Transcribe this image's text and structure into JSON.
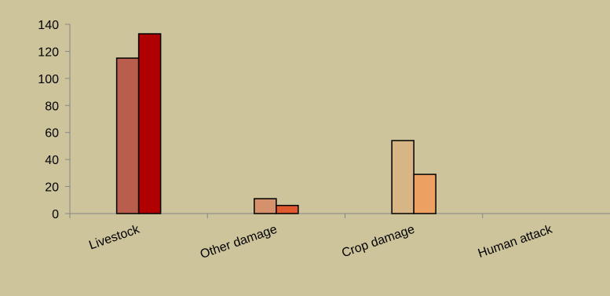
{
  "background_color": "#cdc49c",
  "chart_data": {
    "type": "bar",
    "title": "",
    "xlabel": "",
    "ylabel": "",
    "ylim": [
      0,
      140
    ],
    "yticks": [
      0,
      20,
      40,
      60,
      80,
      100,
      120,
      140
    ],
    "grid": false,
    "legend": "none",
    "categories": [
      "Livestock",
      "Other damage",
      "Crop damage",
      "Human attack"
    ],
    "bars": [
      [
        {
          "value": 115,
          "color": "#b95e4d"
        },
        {
          "value": 133,
          "color": "#b00000"
        }
      ],
      [
        {
          "value": 11,
          "color": "#d4916c"
        },
        {
          "value": 6,
          "color": "#df5a2f"
        }
      ],
      [
        {
          "value": 54,
          "color": "#d8b584"
        },
        {
          "value": 29,
          "color": "#eca062"
        }
      ],
      [
        {
          "value": 0,
          "color": "#d8b584"
        },
        {
          "value": 0,
          "color": "#eca062"
        }
      ]
    ]
  }
}
